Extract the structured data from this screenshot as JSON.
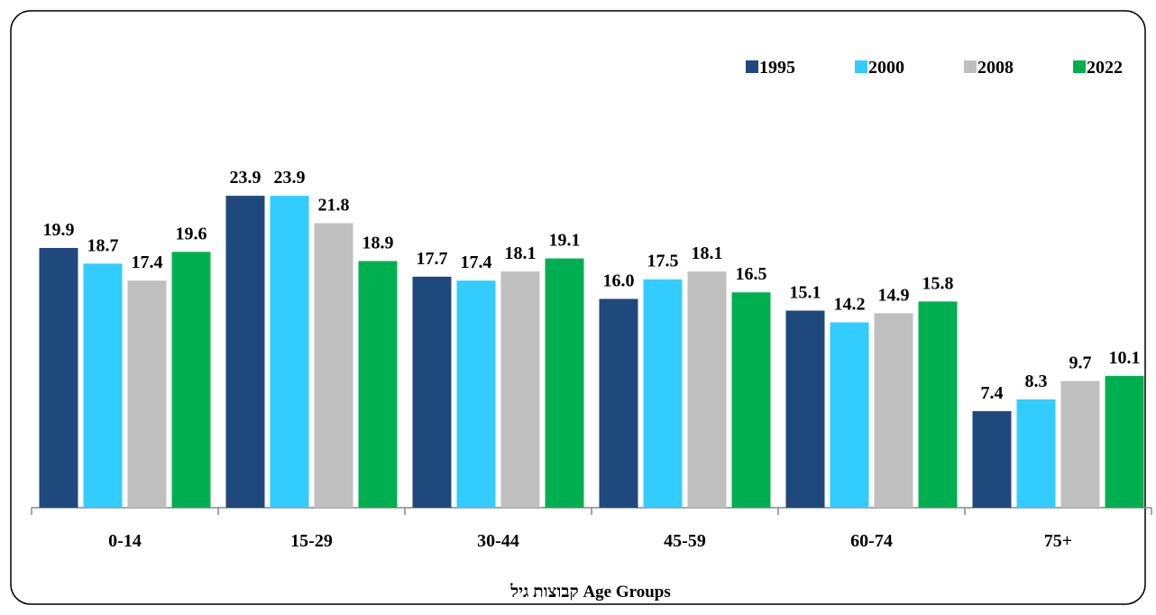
{
  "chart_data": {
    "type": "bar",
    "categories": [
      "0-14",
      "15-29",
      "30-44",
      "45-59",
      "60-74",
      "75+"
    ],
    "series": [
      {
        "name": "1995",
        "color": "#1f497d",
        "values": [
          19.9,
          23.9,
          17.7,
          16.0,
          15.1,
          7.4
        ],
        "value_labels": [
          "19.9",
          "23.9",
          "17.7",
          "16.0",
          "15.1",
          "7.4"
        ]
      },
      {
        "name": "2000",
        "color": "#33ccff",
        "values": [
          18.7,
          23.9,
          17.4,
          17.5,
          14.2,
          8.3
        ],
        "value_labels": [
          "18.7",
          "23.9",
          "17.4",
          "17.5",
          "14.2",
          "8.3"
        ]
      },
      {
        "name": "2008",
        "color": "#bfbfbf",
        "values": [
          17.4,
          21.8,
          18.1,
          18.1,
          14.9,
          9.7
        ],
        "value_labels": [
          "17.4",
          "21.8",
          "18.1",
          "18.1",
          "14.9",
          "9.7"
        ]
      },
      {
        "name": "2022",
        "color": "#00b050",
        "values": [
          19.6,
          18.9,
          19.1,
          16.5,
          15.8,
          10.1
        ],
        "value_labels": [
          "19.6",
          "18.9",
          "19.1",
          "16.5",
          "15.8",
          "10.1"
        ]
      }
    ],
    "x_label": "קבוצות גיל Age Groups",
    "ylim": [
      0,
      36
    ],
    "legend": "top-right"
  }
}
